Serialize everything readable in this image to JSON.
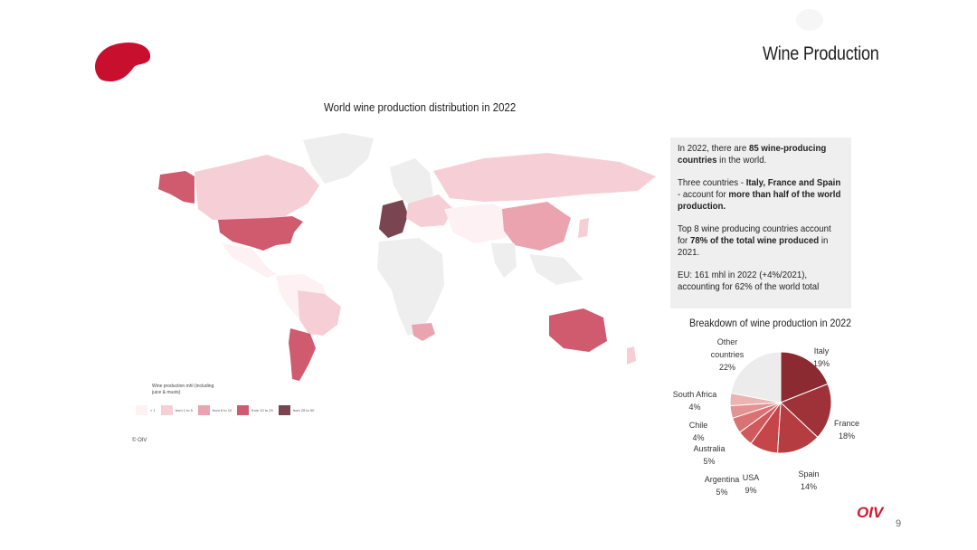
{
  "slide": {
    "title": "Wine Production",
    "page_number": "9",
    "brand_color": "#d0182f",
    "footer_logo": "OIV"
  },
  "map": {
    "title": "World wine production distribution in 2022",
    "copyright": "© OIV",
    "legend_title": "Wine production mhl (including juice & musts)",
    "legend": [
      {
        "label": "< 1",
        "color": "#fdf1f3"
      },
      {
        "label": "from 1 to 5",
        "color": "#f6cfd6"
      },
      {
        "label": "from 6 to 10",
        "color": "#eba3b0"
      },
      {
        "label": "from 10 to 25",
        "color": "#d05a6e"
      },
      {
        "label": "from 25 to 50",
        "color": "#7a4450"
      }
    ]
  },
  "info": {
    "p1_a": "In 2022, there are ",
    "p1_b": "85 wine-producing countries",
    "p1_c": " in the world.",
    "p2_a": "Three countries - ",
    "p2_b": "Italy, France and Spain",
    "p2_c": " - account for ",
    "p2_d": "more than half of the world production.",
    "p3_a": "Top 8 wine producing countries account for ",
    "p3_b": "78% of the total wine produced",
    "p3_c": " in 2021.",
    "p4_a": "EU: 161 mhl in 2022 (+4%/2021),",
    "p4_b": "accounting for 62% of the world total"
  },
  "chart_data": {
    "type": "pie",
    "title": "Breakdown of wine production in 2022",
    "slices": [
      {
        "label": "Italy",
        "value": 19,
        "display": "19%",
        "color": "#8c2a32"
      },
      {
        "label": "France",
        "value": 18,
        "display": "18%",
        "color": "#9e3238"
      },
      {
        "label": "Spain",
        "value": 14,
        "display": "14%",
        "color": "#b53d41"
      },
      {
        "label": "USA",
        "value": 9,
        "display": "9%",
        "color": "#c64548"
      },
      {
        "label": "Argentina",
        "value": 5,
        "display": "5%",
        "color": "#d05a5b"
      },
      {
        "label": "Australia",
        "value": 5,
        "display": "5%",
        "color": "#d97373"
      },
      {
        "label": "Chile",
        "value": 4,
        "display": "4%",
        "color": "#e39393"
      },
      {
        "label": "South Africa",
        "value": 4,
        "display": "4%",
        "color": "#ecb3b3"
      },
      {
        "label": "Other countries",
        "value": 22,
        "display": "22%",
        "color": "#ececec"
      }
    ]
  }
}
